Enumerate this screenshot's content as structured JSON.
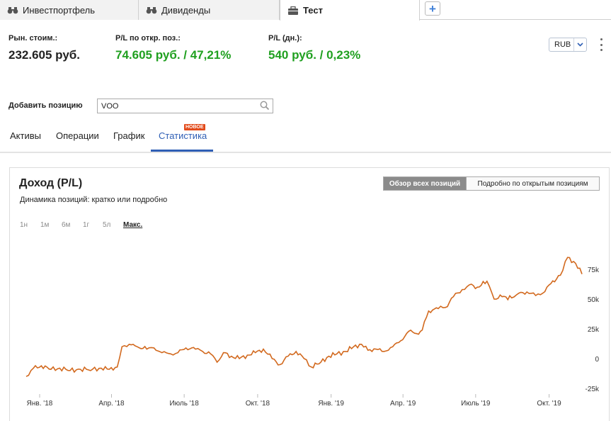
{
  "tabs": [
    {
      "label": "Инвестпортфель",
      "icon": "binoculars-icon"
    },
    {
      "label": "Дивиденды",
      "icon": "binoculars-icon"
    },
    {
      "label": "Тест",
      "icon": "briefcase-icon",
      "active": true
    }
  ],
  "add_tab_symbol": "+",
  "summary": {
    "market_value": {
      "label": "Рын. стоим.:",
      "value": "232.605 руб."
    },
    "pl_open": {
      "label": "P/L по откр. поз.:",
      "value": "74.605 руб. / 47,21%"
    },
    "pl_day": {
      "label": "P/L (дн.):",
      "value": "540 руб. / 0,23%"
    },
    "currency": "RUB"
  },
  "add_position": {
    "label": "Добавить позицию",
    "value": "VOO"
  },
  "nav": {
    "items": [
      "Активы",
      "Операции",
      "График",
      "Статистика"
    ],
    "active_index": 3,
    "badge": "НОВОЕ"
  },
  "chart_panel": {
    "title": "Доход (P/L)",
    "subtitle": "Динамика позиций: кратко или подробно",
    "toggle_on": "Обзор всех позиций",
    "toggle_off": "Подробно по открытым позициям",
    "periods": [
      "1н",
      "1м",
      "6м",
      "1г",
      "5л",
      "Макс."
    ],
    "active_period": "Макс."
  },
  "colors": {
    "line": "#d2691e",
    "green": "#20a020",
    "accent": "#2f5fb5",
    "badge": "#e24a1a"
  },
  "chart_data": {
    "type": "line",
    "title": "Доход (P/L)",
    "x_ticks": [
      "Янв. '18",
      "Апр. '18",
      "Июль '18",
      "Окт. '18",
      "Янв. '19",
      "Апр. '19",
      "Июль '19",
      "Окт. '19"
    ],
    "y_ticks": [
      "75k",
      "50k",
      "25k",
      "0",
      "-25k"
    ],
    "ylim": [
      -25000,
      85000
    ],
    "y_axis_side": "right",
    "grid": false,
    "series": [
      {
        "x": [
          "2018-01-01",
          "2018-01-10",
          "2018-01-20",
          "2018-02-01",
          "2018-02-12",
          "2018-02-25",
          "2018-03-10",
          "2018-03-25",
          "2018-04-05",
          "2018-04-15",
          "2018-04-25",
          "2018-05-01",
          "2018-05-10",
          "2018-05-20",
          "2018-06-01",
          "2018-06-10",
          "2018-06-20",
          "2018-07-01",
          "2018-07-10",
          "2018-07-20",
          "2018-08-01",
          "2018-08-10",
          "2018-08-20",
          "2018-08-28",
          "2018-09-05",
          "2018-09-15",
          "2018-09-25",
          "2018-10-05",
          "2018-10-15",
          "2018-10-25",
          "2018-11-05",
          "2018-11-15",
          "2018-11-25",
          "2018-12-05",
          "2018-12-15",
          "2018-12-24",
          "2019-01-05",
          "2019-01-15",
          "2019-01-25",
          "2019-02-05",
          "2019-02-15",
          "2019-02-25",
          "2019-03-05",
          "2019-03-15",
          "2019-03-25",
          "2019-04-05",
          "2019-04-15",
          "2019-04-25",
          "2019-05-05",
          "2019-05-12",
          "2019-05-20",
          "2019-06-01",
          "2019-06-10",
          "2019-06-20",
          "2019-07-01",
          "2019-07-10",
          "2019-07-20",
          "2019-08-01",
          "2019-08-10",
          "2019-08-20",
          "2019-09-01",
          "2019-09-10",
          "2019-09-20",
          "2019-10-01",
          "2019-10-10",
          "2019-10-20",
          "2019-11-01",
          "2019-11-10",
          "2019-11-20",
          "2019-11-28"
        ],
        "values": [
          -15000,
          -8000,
          -6000,
          -9000,
          -8000,
          -10000,
          -9000,
          -9000,
          -8000,
          -9000,
          -7000,
          10000,
          12000,
          10000,
          8000,
          9000,
          5000,
          4000,
          5000,
          9000,
          8000,
          6000,
          4000,
          -3000,
          5000,
          2000,
          0,
          3000,
          5000,
          8000,
          0,
          -5000,
          2000,
          6000,
          0,
          -7000,
          -3000,
          2000,
          4000,
          6000,
          10000,
          12000,
          7000,
          8000,
          6000,
          10000,
          15000,
          23000,
          21000,
          24000,
          40000,
          42000,
          43000,
          52000,
          58000,
          62000,
          60000,
          65000,
          50000,
          52000,
          51000,
          55000,
          56000,
          53000,
          55000,
          63000,
          70000,
          85000,
          80000,
          71000
        ]
      }
    ]
  }
}
